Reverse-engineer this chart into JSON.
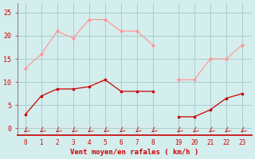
{
  "mean_x": [
    0,
    1,
    2,
    3,
    4,
    5,
    6,
    7,
    8,
    19,
    20,
    21,
    22,
    23
  ],
  "mean_y": [
    3,
    7,
    8.5,
    8.5,
    9,
    10.5,
    8,
    8,
    8,
    2.5,
    2.5,
    4,
    6.5,
    7.5
  ],
  "gust_x": [
    0,
    1,
    2,
    3,
    4,
    5,
    6,
    7,
    8,
    19,
    20,
    21,
    22,
    23
  ],
  "gust_y": [
    13,
    16,
    21,
    19.5,
    23.5,
    23.5,
    21,
    21,
    18,
    10.5,
    10.5,
    15,
    15,
    18
  ],
  "mean_color": "#cc0000",
  "gust_color": "#ff9999",
  "bg_color": "#d4eeee",
  "grid_color": "#aacccc",
  "spine_color": "#888888",
  "bottom_line_color": "#cc0000",
  "xlabel": "Vent moyen/en rafales ( km/h )",
  "ylim": [
    -1.5,
    27
  ],
  "yticks": [
    0,
    5,
    10,
    15,
    20,
    25
  ],
  "ytick_labels": [
    "0",
    "5",
    "10",
    "15",
    "20",
    "25"
  ],
  "x_labels": [
    "0",
    "1",
    "2",
    "3",
    "4",
    "5",
    "6",
    "7",
    "8",
    "19",
    "20",
    "21",
    "22",
    "23"
  ],
  "xlabel_color": "#cc0000",
  "tick_color": "#cc0000",
  "tick_fontsize": 5.5,
  "ylabel_fontsize": 6,
  "xlabel_fontsize": 6.5
}
